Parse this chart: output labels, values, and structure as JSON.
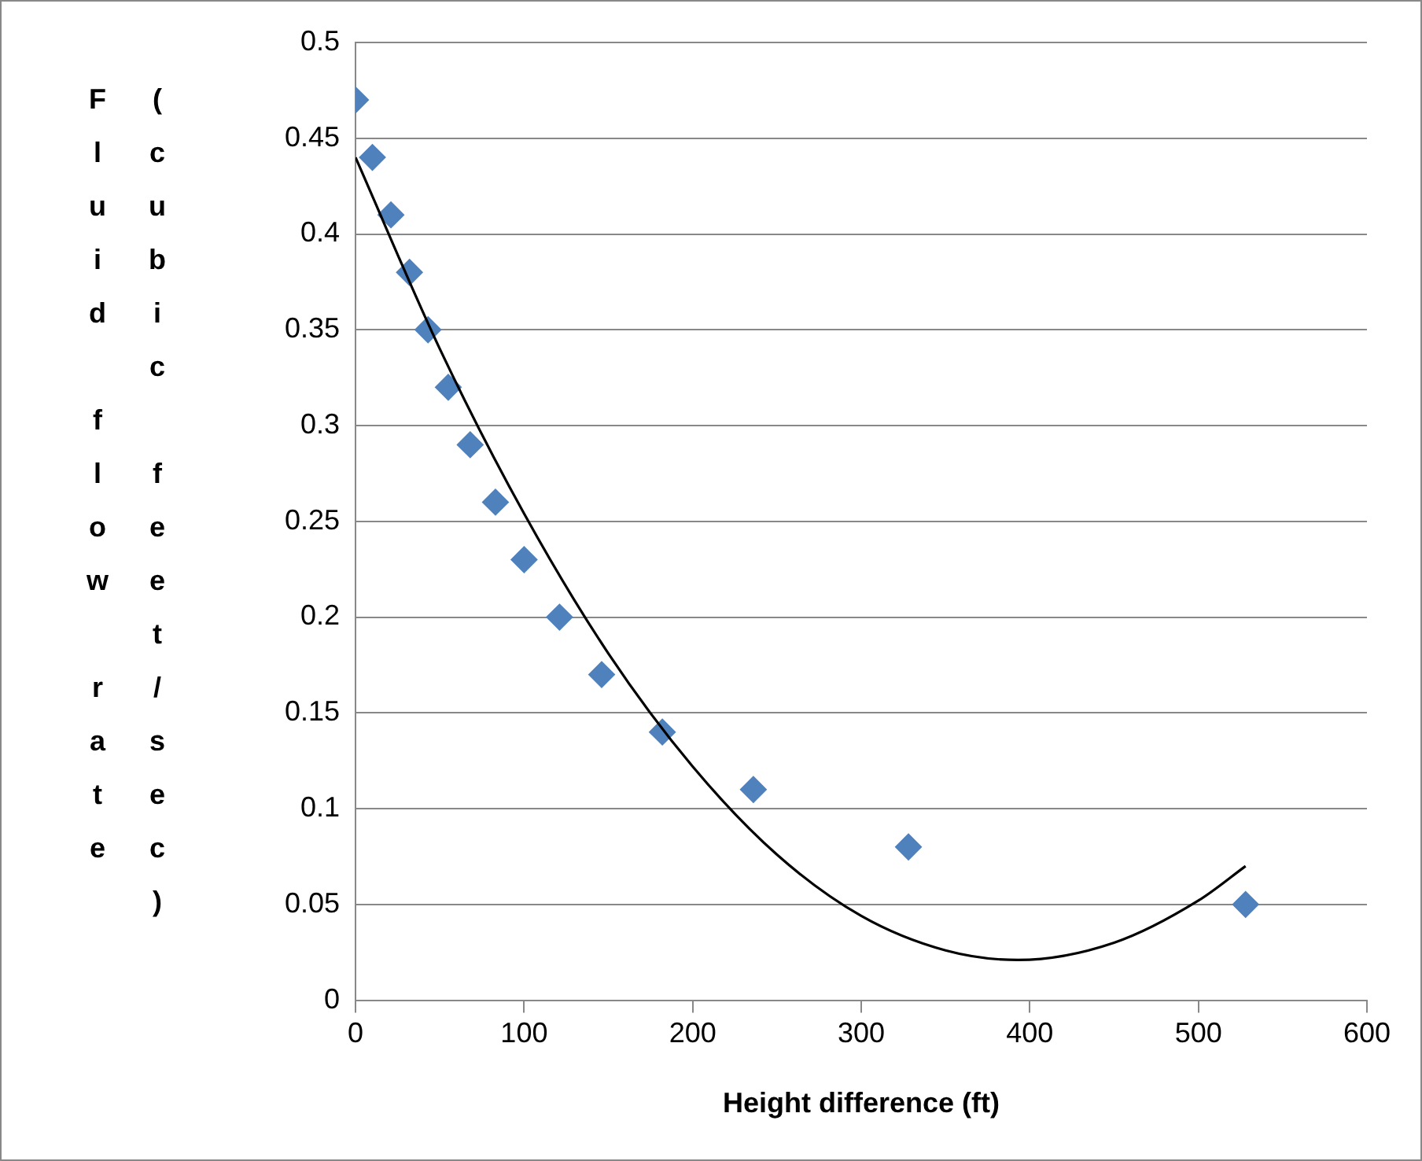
{
  "chart_data": {
    "type": "scatter",
    "xlabel": "Height difference (ft)",
    "ylabel": "Fluid flow rate (cubic feet/sec)",
    "series": [
      {
        "type": "scatter",
        "color": "#4f81bd",
        "marker": "diamond",
        "x": [
          0,
          10,
          21,
          32,
          43,
          55,
          68,
          83,
          100,
          121,
          146,
          182,
          236,
          328,
          528
        ],
        "values": [
          0.47,
          0.44,
          0.41,
          0.38,
          0.35,
          0.32,
          0.29,
          0.26,
          0.23,
          0.2,
          0.17,
          0.14,
          0.11,
          0.08,
          0.05
        ]
      },
      {
        "type": "line",
        "color": "#000000",
        "marker": "none",
        "x": [
          0,
          50,
          100,
          150,
          200,
          250,
          300,
          350,
          393,
          450,
          500,
          528
        ],
        "values": [
          0.44,
          0.34,
          0.254,
          0.181,
          0.122,
          0.076,
          0.044,
          0.026,
          0.021,
          0.03,
          0.052,
          0.07
        ]
      }
    ],
    "xlim": [
      0,
      600
    ],
    "xticks": [
      0,
      100,
      200,
      300,
      400,
      500,
      600
    ],
    "ylim": [
      0,
      0.5
    ],
    "yticks": [
      0,
      0.05,
      {
        "value": 0.1,
        "label": "0.1"
      },
      0.15,
      {
        "value": 0.2,
        "label": "0.2"
      },
      0.25,
      {
        "value": 0.3,
        "label": "0.3"
      },
      0.35,
      {
        "value": 0.4,
        "label": "0.4"
      },
      0.45,
      {
        "value": 0.5,
        "label": "0.5"
      }
    ],
    "grid": "y",
    "legend": false
  }
}
